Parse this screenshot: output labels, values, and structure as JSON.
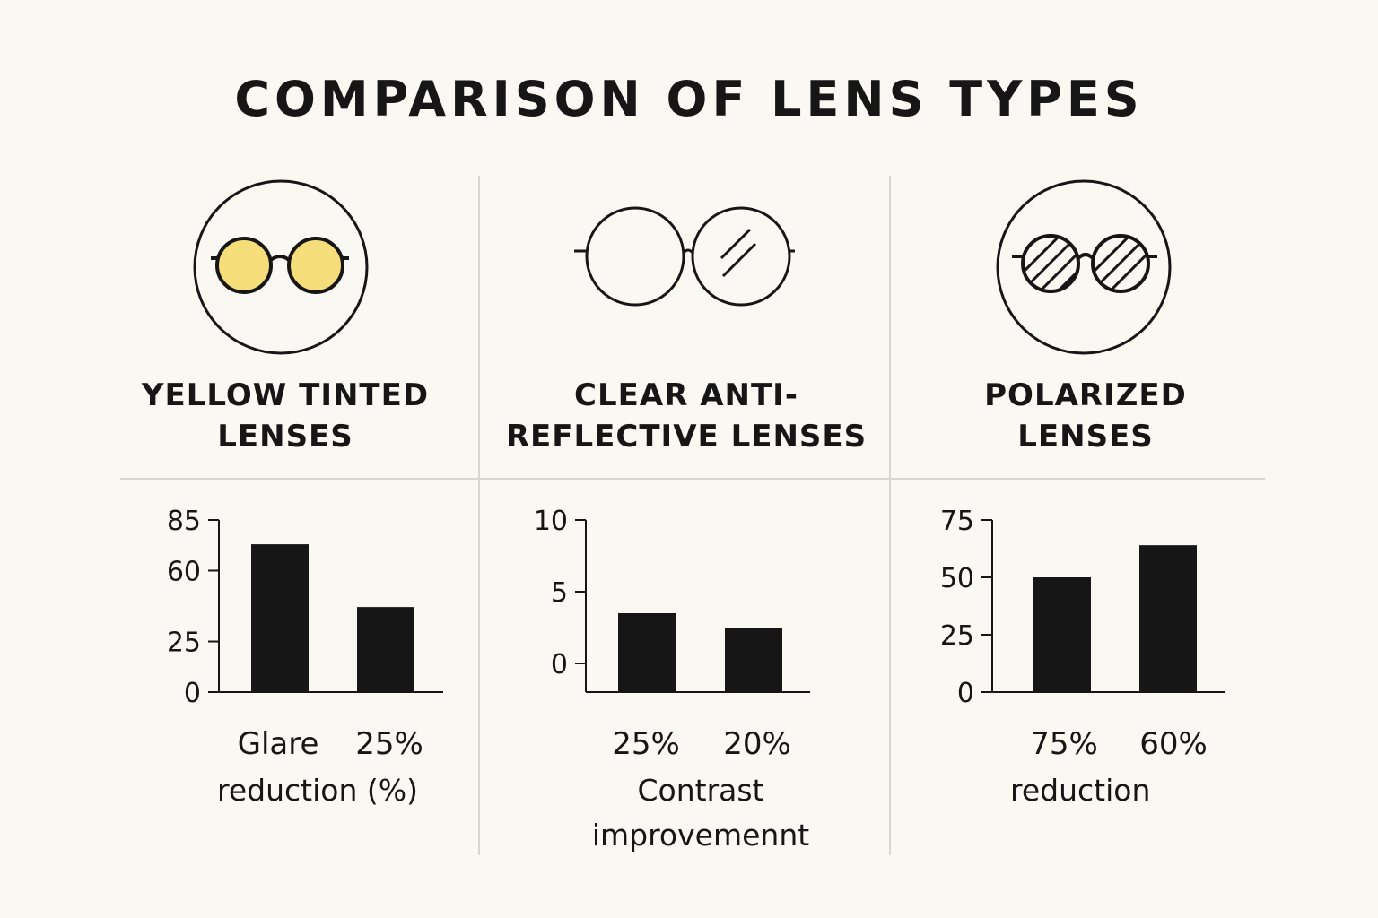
{
  "title": "COMPARISON OF LENS TYPES",
  "panels": [
    {
      "title_line1": "YELLOW TINTED",
      "title_line2": "LENSES",
      "icon": "yellow-tinted-glasses-icon",
      "lens_color": "#f5de79",
      "chart_labels": [
        "Glare",
        "25%"
      ],
      "caption": "reduction (%)"
    },
    {
      "title_line1": "CLEAR ANTI-",
      "title_line2": "REFLECTIVE LENSES",
      "icon": "clear-glasses-icon",
      "chart_labels": [
        "25%",
        "20%"
      ],
      "caption_line1": "Contrast",
      "caption_line2": "improvemennt"
    },
    {
      "title_line1": "POLARIZED",
      "title_line2": "LENSES",
      "icon": "polarized-glasses-icon",
      "chart_labels": [
        "75%",
        "60%"
      ],
      "caption": "reduction"
    }
  ],
  "chart_data": [
    {
      "type": "bar",
      "title": "YELLOW TINTED LENSES",
      "yticks": [
        0,
        25,
        60,
        85
      ],
      "ylim": [
        0,
        85
      ],
      "values": [
        73,
        42
      ],
      "bar_color": "#161616"
    },
    {
      "type": "bar",
      "title": "CLEAR ANTI-REFLECTIVE LENSES",
      "yticks": [
        0,
        5,
        10
      ],
      "ylim": [
        -2,
        10
      ],
      "values": [
        3.5,
        2.5
      ],
      "bar_color": "#161616"
    },
    {
      "type": "bar",
      "title": "POLARIZED LENSES",
      "yticks": [
        0,
        25,
        50,
        75
      ],
      "ylim": [
        0,
        75
      ],
      "values": [
        50,
        64
      ],
      "bar_color": "#161616"
    }
  ]
}
